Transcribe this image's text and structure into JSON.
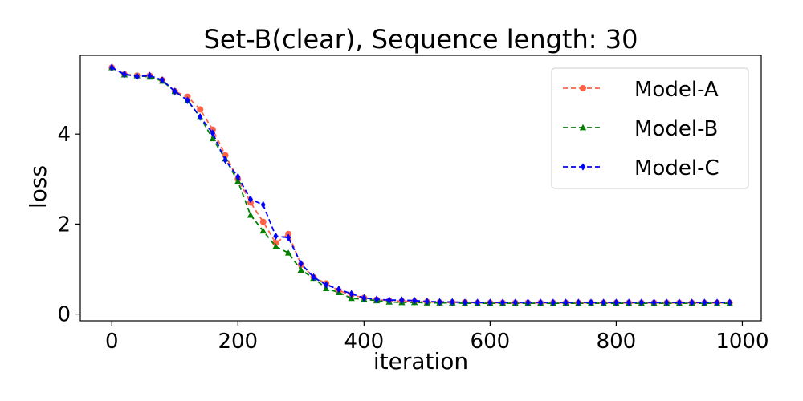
{
  "chart_data": {
    "type": "line",
    "title": "Set-B(clear), Sequence length: 30",
    "xlabel": "iteration",
    "ylabel": "loss",
    "xlim": [
      -50,
      1030
    ],
    "ylim": [
      -0.15,
      5.75
    ],
    "xticks": [
      0,
      200,
      400,
      600,
      800,
      1000
    ],
    "yticks": [
      0,
      2,
      4
    ],
    "grid": false,
    "legend_position": "top-right",
    "x": [
      0,
      20,
      40,
      60,
      80,
      100,
      120,
      140,
      160,
      180,
      200,
      220,
      240,
      260,
      280,
      300,
      320,
      340,
      360,
      380,
      400,
      420,
      440,
      460,
      480,
      500,
      520,
      540,
      560,
      580,
      600,
      620,
      640,
      660,
      680,
      700,
      720,
      740,
      760,
      780,
      800,
      820,
      840,
      860,
      880,
      900,
      920,
      940,
      960,
      980
    ],
    "series": [
      {
        "name": "Model-A",
        "color": "#ff6347",
        "marker": "circle",
        "values": [
          5.48,
          5.33,
          5.3,
          5.3,
          5.2,
          4.95,
          4.83,
          4.55,
          4.1,
          3.53,
          3.0,
          2.48,
          2.05,
          1.58,
          1.78,
          1.1,
          0.82,
          0.68,
          0.52,
          0.43,
          0.36,
          0.32,
          0.3,
          0.29,
          0.28,
          0.27,
          0.26,
          0.26,
          0.26,
          0.25,
          0.25,
          0.25,
          0.25,
          0.25,
          0.25,
          0.25,
          0.25,
          0.25,
          0.25,
          0.25,
          0.25,
          0.25,
          0.25,
          0.25,
          0.25,
          0.25,
          0.25,
          0.25,
          0.25,
          0.25
        ]
      },
      {
        "name": "Model-B",
        "color": "#008000",
        "marker": "triangle",
        "values": [
          5.48,
          5.32,
          5.3,
          5.27,
          5.18,
          4.95,
          4.75,
          4.38,
          3.9,
          3.45,
          2.95,
          2.2,
          1.85,
          1.5,
          1.36,
          0.98,
          0.8,
          0.57,
          0.48,
          0.35,
          0.33,
          0.3,
          0.27,
          0.26,
          0.26,
          0.25,
          0.25,
          0.25,
          0.24,
          0.24,
          0.24,
          0.24,
          0.24,
          0.24,
          0.24,
          0.24,
          0.24,
          0.24,
          0.24,
          0.24,
          0.24,
          0.24,
          0.24,
          0.24,
          0.24,
          0.24,
          0.24,
          0.24,
          0.24,
          0.24
        ]
      },
      {
        "name": "Model-C",
        "color": "#0000ff",
        "marker": "diamond",
        "values": [
          5.48,
          5.33,
          5.28,
          5.3,
          5.2,
          4.95,
          4.75,
          4.38,
          4.02,
          3.42,
          3.05,
          2.55,
          2.43,
          1.73,
          1.7,
          1.12,
          0.82,
          0.65,
          0.55,
          0.45,
          0.36,
          0.33,
          0.31,
          0.31,
          0.3,
          0.28,
          0.27,
          0.27,
          0.26,
          0.26,
          0.26,
          0.26,
          0.26,
          0.26,
          0.26,
          0.26,
          0.26,
          0.26,
          0.26,
          0.26,
          0.26,
          0.26,
          0.26,
          0.26,
          0.26,
          0.26,
          0.26,
          0.26,
          0.26,
          0.26
        ]
      }
    ]
  }
}
